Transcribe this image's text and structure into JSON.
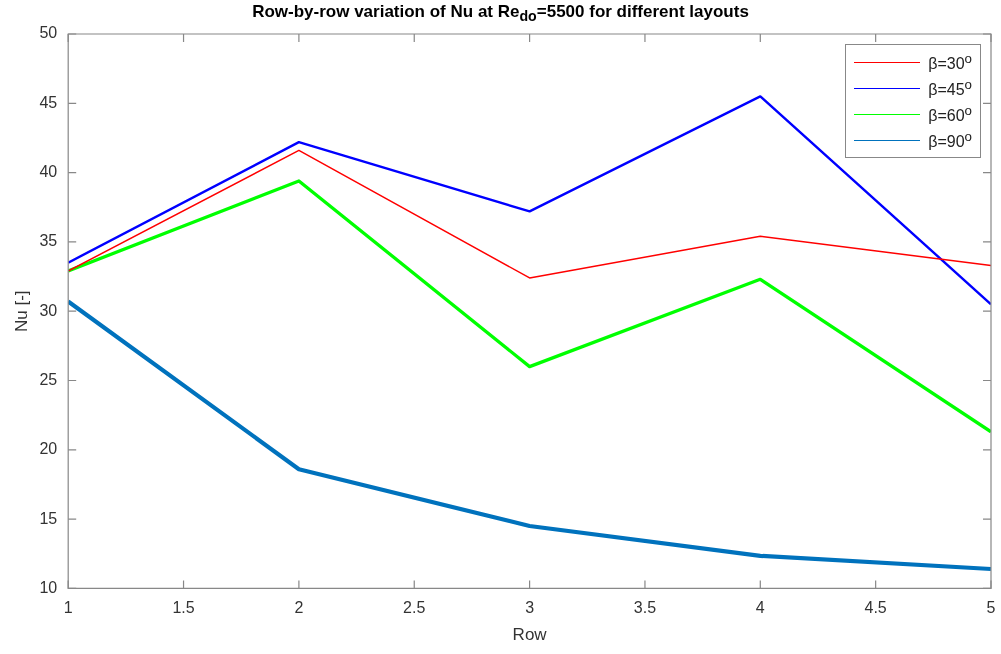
{
  "chart_data": {
    "type": "line",
    "title": "Row-by-row variation of Nu at Re$_{do}$=5500 for different layouts",
    "xlabel": "Row",
    "ylabel": "Nu [-]",
    "x": [
      1,
      2,
      3,
      4,
      5
    ],
    "series": [
      {
        "name": "β=30$^{o}$",
        "color": "#ff0000",
        "values": [
          32.9,
          41.6,
          32.4,
          35.4,
          33.3
        ]
      },
      {
        "name": "β=45$^{o}$",
        "color": "#0000ff",
        "values": [
          33.5,
          42.2,
          37.2,
          45.5,
          30.5
        ]
      },
      {
        "name": "β=60$^{o}$",
        "color": "#00ff00",
        "values": [
          32.9,
          39.4,
          26.0,
          32.3,
          21.3
        ]
      },
      {
        "name": "β=90$^{o}$",
        "color": "#0072bd",
        "values": [
          30.7,
          18.6,
          14.5,
          12.35,
          11.4
        ]
      }
    ],
    "xlim": [
      1,
      5
    ],
    "xticks": [
      1,
      1.5,
      2,
      2.5,
      3,
      3.5,
      4,
      4.5,
      5
    ],
    "ylim": [
      10,
      50
    ],
    "yticks": [
      10,
      15,
      20,
      25,
      30,
      35,
      40,
      45,
      50
    ],
    "legend": "top right",
    "marker": "none",
    "line_style": "solid"
  }
}
